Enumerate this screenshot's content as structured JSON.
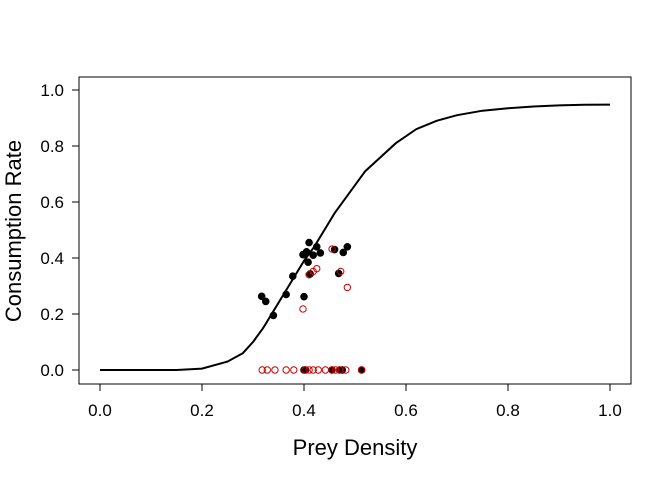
{
  "chart_data": {
    "type": "scatter",
    "title": "",
    "xlabel": "Prey Density",
    "ylabel": "Consumption Rate",
    "xlim": [
      0.0,
      1.0
    ],
    "ylim": [
      0.0,
      1.0
    ],
    "xticks": [
      "0.0",
      "0.2",
      "0.4",
      "0.6",
      "0.8",
      "1.0"
    ],
    "yticks": [
      "0.0",
      "0.2",
      "0.4",
      "0.6",
      "0.8",
      "1.0"
    ],
    "grid": false,
    "series": [
      {
        "style": "line",
        "color": "#000000",
        "x": [
          0.0,
          0.05,
          0.1,
          0.15,
          0.2,
          0.25,
          0.28,
          0.3,
          0.32,
          0.34,
          0.36,
          0.38,
          0.4,
          0.42,
          0.44,
          0.46,
          0.48,
          0.5,
          0.52,
          0.55,
          0.58,
          0.62,
          0.66,
          0.7,
          0.75,
          0.8,
          0.85,
          0.9,
          0.95,
          1.0
        ],
        "y": [
          0.0,
          0.0,
          0.0,
          0.0,
          0.005,
          0.03,
          0.06,
          0.1,
          0.15,
          0.21,
          0.27,
          0.33,
          0.39,
          0.44,
          0.5,
          0.56,
          0.61,
          0.66,
          0.71,
          0.76,
          0.81,
          0.86,
          0.89,
          0.91,
          0.926,
          0.935,
          0.941,
          0.945,
          0.947,
          0.948
        ]
      },
      {
        "style": "filled-points",
        "color": "#000000",
        "points": [
          [
            0.317,
            0.263
          ],
          [
            0.325,
            0.245
          ],
          [
            0.34,
            0.195
          ],
          [
            0.365,
            0.27
          ],
          [
            0.378,
            0.335
          ],
          [
            0.398,
            0.412
          ],
          [
            0.4,
            0.262
          ],
          [
            0.405,
            0.422
          ],
          [
            0.408,
            0.385
          ],
          [
            0.41,
            0.455
          ],
          [
            0.412,
            0.343
          ],
          [
            0.418,
            0.41
          ],
          [
            0.425,
            0.44
          ],
          [
            0.432,
            0.418
          ],
          [
            0.46,
            0.43
          ],
          [
            0.468,
            0.345
          ],
          [
            0.477,
            0.42
          ],
          [
            0.485,
            0.44
          ],
          [
            0.4,
            0.0
          ],
          [
            0.403,
            0.0
          ],
          [
            0.455,
            0.0
          ],
          [
            0.47,
            0.0
          ],
          [
            0.475,
            0.0
          ],
          [
            0.513,
            0.0
          ]
        ]
      },
      {
        "style": "open-points",
        "color": "#cc0000",
        "points": [
          [
            0.398,
            0.218
          ],
          [
            0.41,
            0.34
          ],
          [
            0.418,
            0.352
          ],
          [
            0.425,
            0.362
          ],
          [
            0.455,
            0.432
          ],
          [
            0.472,
            0.352
          ],
          [
            0.485,
            0.295
          ],
          [
            0.318,
            0.0
          ],
          [
            0.328,
            0.0
          ],
          [
            0.343,
            0.0
          ],
          [
            0.365,
            0.0
          ],
          [
            0.38,
            0.0
          ],
          [
            0.402,
            0.0
          ],
          [
            0.41,
            0.0
          ],
          [
            0.418,
            0.0
          ],
          [
            0.428,
            0.0
          ],
          [
            0.442,
            0.0
          ],
          [
            0.455,
            0.0
          ],
          [
            0.462,
            0.0
          ],
          [
            0.47,
            0.0
          ],
          [
            0.482,
            0.0
          ],
          [
            0.513,
            0.0
          ]
        ]
      }
    ]
  }
}
